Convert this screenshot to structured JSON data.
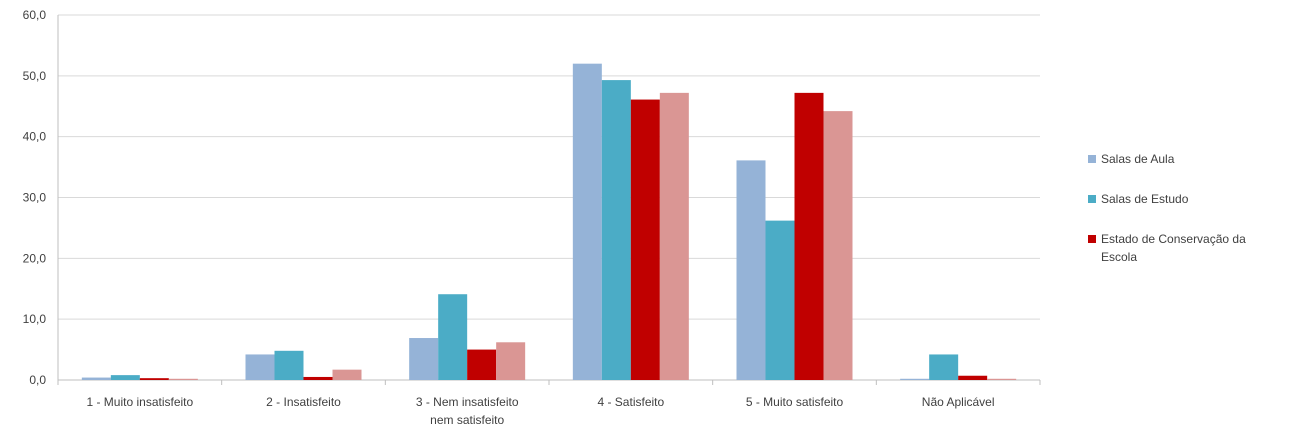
{
  "chart_data": {
    "type": "bar",
    "categories": [
      "1 - Muito insatisfeito",
      "2 - Insatisfeito",
      "3 - Nem insatisfeito nem satisfeito",
      "4 - Satisfeito",
      "5 - Muito satisfeito",
      "Não Aplicável"
    ],
    "category_lines": [
      [
        "1 - Muito insatisfeito"
      ],
      [
        "2 - Insatisfeito"
      ],
      [
        "3 - Nem insatisfeito",
        "nem satisfeito"
      ],
      [
        "4 - Satisfeito"
      ],
      [
        "5 - Muito satisfeito"
      ],
      [
        "Não Aplicável"
      ]
    ],
    "series": [
      {
        "name": "Salas de Aula",
        "color": "#95b3d7",
        "values": [
          0.4,
          4.2,
          6.9,
          52.0,
          36.1,
          0.2
        ]
      },
      {
        "name": "Salas de Estudo",
        "color": "#4bacc6",
        "values": [
          0.8,
          4.8,
          14.1,
          49.3,
          26.2,
          4.2
        ]
      },
      {
        "name": "Estado de Conservação da Escola",
        "color": "#c00000",
        "values": [
          0.3,
          0.5,
          5.0,
          46.1,
          47.2,
          0.7
        ]
      },
      {
        "name": "",
        "color": "#da9694",
        "values": [
          0.2,
          1.7,
          6.2,
          47.2,
          44.2,
          0.2
        ]
      }
    ],
    "legend_lines": [
      [
        "Salas de Aula"
      ],
      [
        "Salas de Estudo"
      ],
      [
        "Estado de Conservação da",
        "Escola"
      ]
    ],
    "y_ticks": [
      "0,0",
      "10,0",
      "20,0",
      "30,0",
      "40,0",
      "50,0",
      "60,0"
    ],
    "ylim": [
      0,
      60
    ],
    "grid": true,
    "legend_position": "right"
  }
}
